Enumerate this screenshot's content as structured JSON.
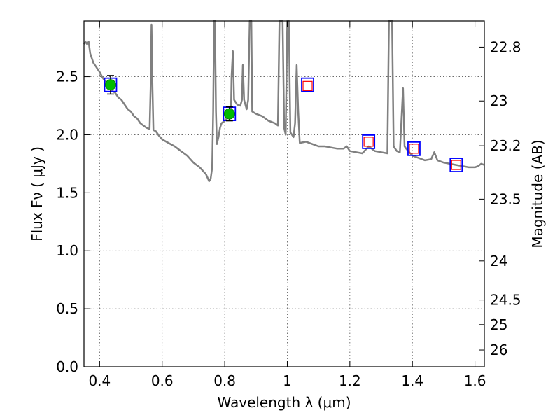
{
  "chart_data": {
    "type": "scatter",
    "xlabel": "Wavelength  λ (μm)",
    "ylabel": "Flux  Fν  ( μJy )",
    "y2label": "Magnitude (AB)",
    "xlim": [
      0.35,
      1.63
    ],
    "ylim": [
      0.0,
      2.98
    ],
    "grid": true,
    "x_ticks": [
      {
        "v": 0.4,
        "label": "0.4"
      },
      {
        "v": 0.6,
        "label": "0.6"
      },
      {
        "v": 0.8,
        "label": "0.8"
      },
      {
        "v": 1.0,
        "label": "1"
      },
      {
        "v": 1.2,
        "label": "1.2"
      },
      {
        "v": 1.4,
        "label": "1.4"
      },
      {
        "v": 1.6,
        "label": "1.6"
      }
    ],
    "y_ticks": [
      {
        "v": 0.0,
        "label": "0.0"
      },
      {
        "v": 0.5,
        "label": "0.5"
      },
      {
        "v": 1.0,
        "label": "1.0"
      },
      {
        "v": 1.5,
        "label": "1.5"
      },
      {
        "v": 2.0,
        "label": "2.0"
      },
      {
        "v": 2.5,
        "label": "2.5"
      }
    ],
    "mag_ticks": [
      {
        "v": 22.8,
        "label": "22.8"
      },
      {
        "v": 23.0,
        "label": "23"
      },
      {
        "v": 23.2,
        "label": "23.2"
      },
      {
        "v": 23.5,
        "label": "23.5"
      },
      {
        "v": 24.0,
        "label": "24"
      },
      {
        "v": 24.5,
        "label": "24.5"
      },
      {
        "v": 25.0,
        "label": "25"
      },
      {
        "v": 26.0,
        "label": "26"
      }
    ],
    "model_spectrum": {
      "color": "#808080",
      "points": [
        [
          0.35,
          2.78
        ],
        [
          0.355,
          2.8
        ],
        [
          0.36,
          2.78
        ],
        [
          0.365,
          2.8
        ],
        [
          0.37,
          2.7
        ],
        [
          0.38,
          2.62
        ],
        [
          0.39,
          2.58
        ],
        [
          0.4,
          2.54
        ],
        [
          0.41,
          2.49
        ],
        [
          0.42,
          2.45
        ],
        [
          0.43,
          2.42
        ],
        [
          0.44,
          2.38
        ],
        [
          0.45,
          2.36
        ],
        [
          0.46,
          2.32
        ],
        [
          0.47,
          2.3
        ],
        [
          0.48,
          2.26
        ],
        [
          0.49,
          2.22
        ],
        [
          0.5,
          2.2
        ],
        [
          0.51,
          2.16
        ],
        [
          0.52,
          2.14
        ],
        [
          0.53,
          2.1
        ],
        [
          0.54,
          2.08
        ],
        [
          0.55,
          2.06
        ],
        [
          0.56,
          2.05
        ],
        [
          0.563,
          2.4
        ],
        [
          0.566,
          2.95
        ],
        [
          0.569,
          2.4
        ],
        [
          0.572,
          2.04
        ],
        [
          0.58,
          2.03
        ],
        [
          0.59,
          1.99
        ],
        [
          0.6,
          1.96
        ],
        [
          0.62,
          1.93
        ],
        [
          0.64,
          1.9
        ],
        [
          0.66,
          1.86
        ],
        [
          0.68,
          1.82
        ],
        [
          0.7,
          1.76
        ],
        [
          0.72,
          1.72
        ],
        [
          0.74,
          1.66
        ],
        [
          0.75,
          1.6
        ],
        [
          0.755,
          1.62
        ],
        [
          0.76,
          1.72
        ],
        [
          0.763,
          2.2
        ],
        [
          0.766,
          2.98
        ],
        [
          0.769,
          2.98
        ],
        [
          0.772,
          2.2
        ],
        [
          0.775,
          1.92
        ],
        [
          0.78,
          1.98
        ],
        [
          0.785,
          2.06
        ],
        [
          0.79,
          2.1
        ],
        [
          0.8,
          2.12
        ],
        [
          0.81,
          2.15
        ],
        [
          0.82,
          2.18
        ],
        [
          0.822,
          2.5
        ],
        [
          0.826,
          2.72
        ],
        [
          0.83,
          2.3
        ],
        [
          0.84,
          2.26
        ],
        [
          0.85,
          2.25
        ],
        [
          0.855,
          2.3
        ],
        [
          0.858,
          2.6
        ],
        [
          0.862,
          2.3
        ],
        [
          0.87,
          2.22
        ],
        [
          0.875,
          2.3
        ],
        [
          0.88,
          2.98
        ],
        [
          0.885,
          2.98
        ],
        [
          0.888,
          2.2
        ],
        [
          0.9,
          2.18
        ],
        [
          0.92,
          2.16
        ],
        [
          0.94,
          2.12
        ],
        [
          0.96,
          2.1
        ],
        [
          0.97,
          2.08
        ],
        [
          0.975,
          2.98
        ],
        [
          0.98,
          2.98
        ],
        [
          0.985,
          2.98
        ],
        [
          0.99,
          2.06
        ],
        [
          0.995,
          2.0
        ],
        [
          1.0,
          2.98
        ],
        [
          1.005,
          2.98
        ],
        [
          1.01,
          2.02
        ],
        [
          1.02,
          1.98
        ],
        [
          1.025,
          2.1
        ],
        [
          1.03,
          2.6
        ],
        [
          1.035,
          2.2
        ],
        [
          1.04,
          1.93
        ],
        [
          1.06,
          1.94
        ],
        [
          1.08,
          1.92
        ],
        [
          1.1,
          1.9
        ],
        [
          1.12,
          1.9
        ],
        [
          1.14,
          1.89
        ],
        [
          1.16,
          1.88
        ],
        [
          1.18,
          1.88
        ],
        [
          1.19,
          1.9
        ],
        [
          1.2,
          1.86
        ],
        [
          1.22,
          1.85
        ],
        [
          1.24,
          1.84
        ],
        [
          1.26,
          1.9
        ],
        [
          1.28,
          1.86
        ],
        [
          1.3,
          1.85
        ],
        [
          1.32,
          1.84
        ],
        [
          1.325,
          2.98
        ],
        [
          1.335,
          2.98
        ],
        [
          1.34,
          1.9
        ],
        [
          1.35,
          1.86
        ],
        [
          1.36,
          1.85
        ],
        [
          1.37,
          2.4
        ],
        [
          1.375,
          1.9
        ],
        [
          1.38,
          1.88
        ],
        [
          1.4,
          1.82
        ],
        [
          1.42,
          1.8
        ],
        [
          1.44,
          1.78
        ],
        [
          1.46,
          1.79
        ],
        [
          1.47,
          1.85
        ],
        [
          1.48,
          1.78
        ],
        [
          1.5,
          1.76
        ],
        [
          1.52,
          1.75
        ],
        [
          1.54,
          1.74
        ],
        [
          1.56,
          1.73
        ],
        [
          1.58,
          1.72
        ],
        [
          1.6,
          1.72
        ],
        [
          1.61,
          1.73
        ],
        [
          1.62,
          1.75
        ],
        [
          1.63,
          1.74
        ]
      ]
    },
    "model_photometry": [
      {
        "x": 0.435,
        "y": 2.43
      },
      {
        "x": 0.815,
        "y": 2.18
      },
      {
        "x": 1.065,
        "y": 2.43
      },
      {
        "x": 1.26,
        "y": 1.94
      },
      {
        "x": 1.405,
        "y": 1.88
      },
      {
        "x": 1.54,
        "y": 1.74
      }
    ],
    "observed_detections": [
      {
        "x": 0.435,
        "y": 2.43,
        "yerr": 0.08
      },
      {
        "x": 0.815,
        "y": 2.18,
        "yerr": 0.06
      }
    ],
    "observed_limits": [
      {
        "x": 1.065,
        "y": 2.42
      },
      {
        "x": 1.26,
        "y": 1.94
      },
      {
        "x": 1.405,
        "y": 1.88
      },
      {
        "x": 1.54,
        "y": 1.74
      }
    ],
    "colors": {
      "model_box": "#0000ff",
      "limit_box": "#ff0000",
      "detection": "#00bb00",
      "errorbar": "#000000",
      "grid": "#555555"
    }
  }
}
